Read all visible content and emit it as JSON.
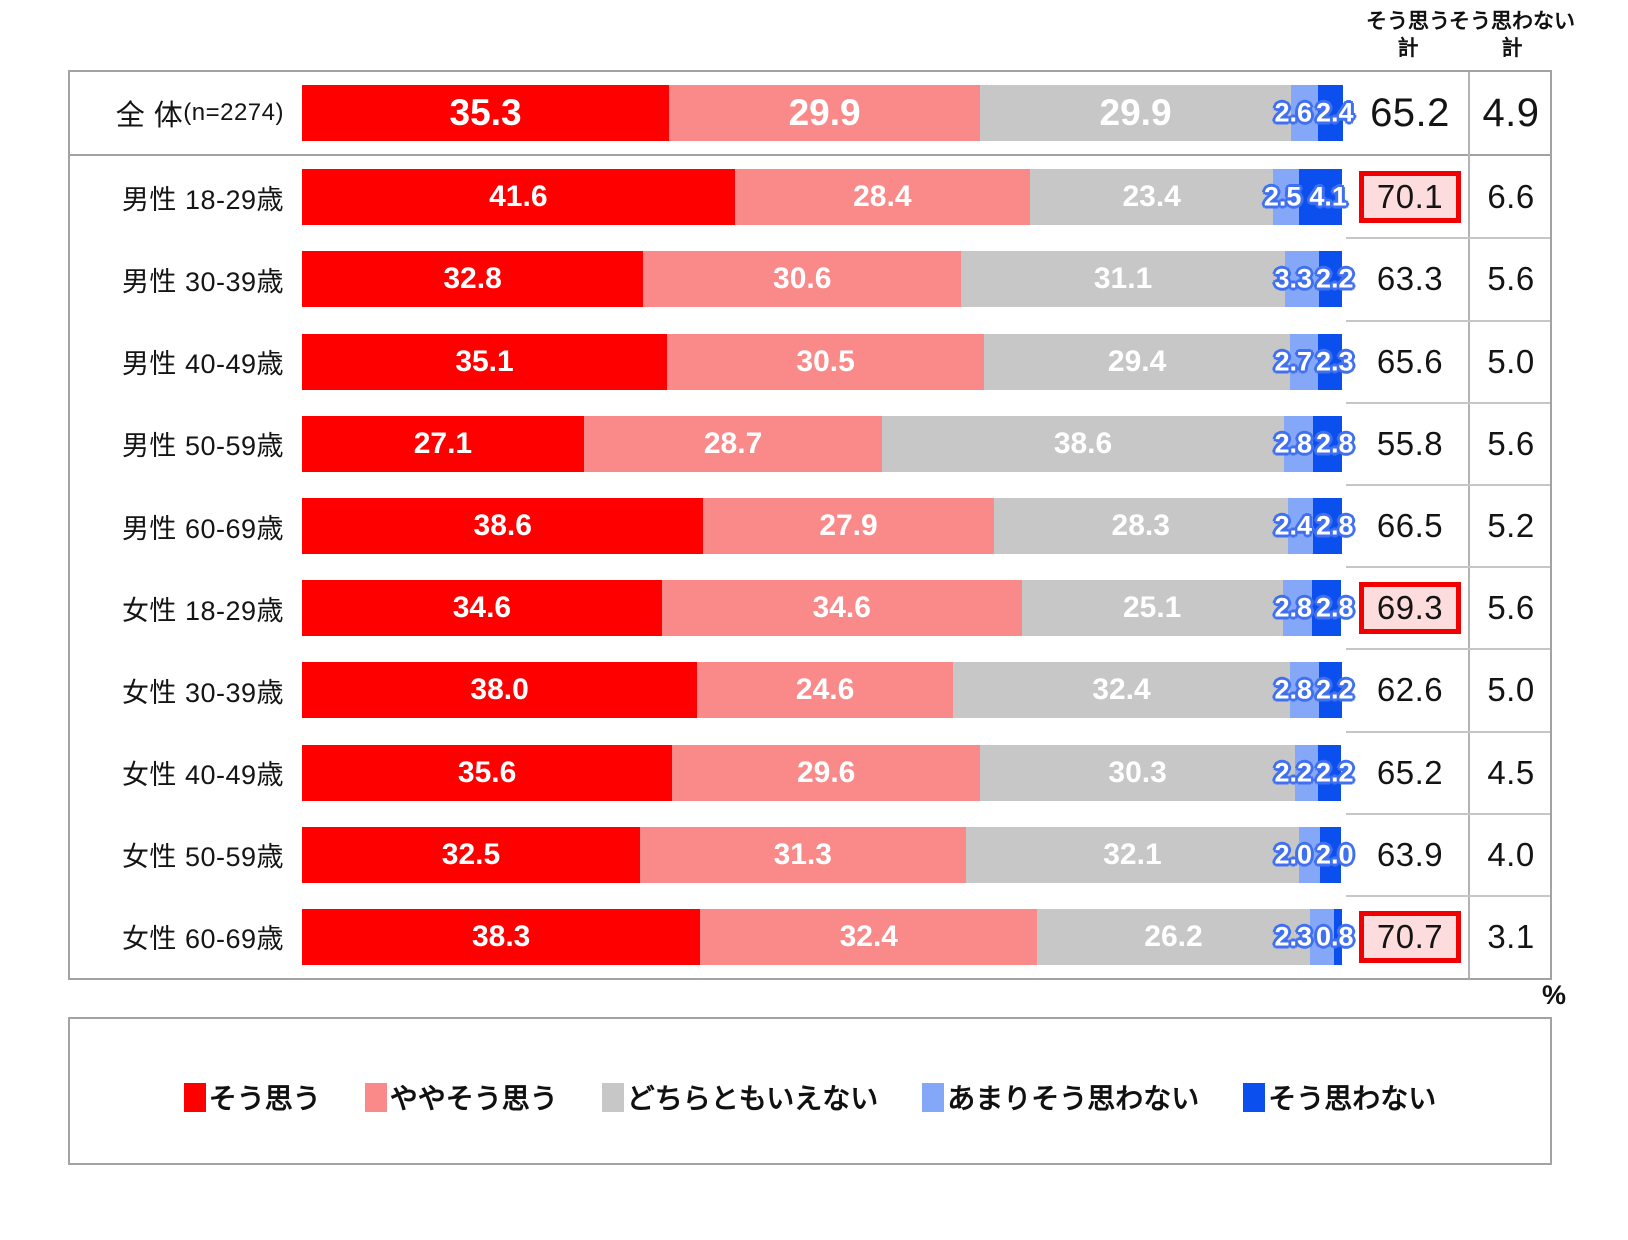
{
  "unit": "%",
  "headers": {
    "agree_line1": "そう思う",
    "disagree_line1": "そう思わない",
    "total_suffix": "計"
  },
  "colors": {
    "agree": "#ff0000",
    "somewhat_agree": "#fa8a8a",
    "neutral": "#c7c7c7",
    "somewhat_disagree": "#85a7f8",
    "disagree": "#0b4fef",
    "highlight_border": "#f00000",
    "highlight_bg": "#fcdcdc",
    "small_label_outline": "#4070f0"
  },
  "chart_data": {
    "type": "bar",
    "stacked": true,
    "orientation": "horizontal",
    "unit": "%",
    "xlim": [
      0,
      100
    ],
    "grid": false,
    "legend_position": "bottom",
    "legend": [
      {
        "label": "そう思う",
        "color": "#ff0000"
      },
      {
        "label": "ややそう思う",
        "color": "#fa8a8a"
      },
      {
        "label": "どちらともいえない",
        "color": "#c7c7c7"
      },
      {
        "label": "あまりそう思わない",
        "color": "#85a7f8"
      },
      {
        "label": "そう思わない",
        "color": "#0b4fef"
      }
    ],
    "total_columns": {
      "agree": "そう思う計",
      "disagree": "そう思わない計"
    },
    "rows": [
      {
        "label": "全 体",
        "label_note": "(n=2274)",
        "values": [
          "35.3",
          "29.9",
          "29.9",
          "2.6",
          "2.4"
        ],
        "agree_total": "65.2",
        "disagree_total": "4.9",
        "highlight": false,
        "emphasis": true
      },
      {
        "label": "男性 18-29歳",
        "values": [
          "41.6",
          "28.4",
          "23.4",
          "2.5",
          "4.1"
        ],
        "agree_total": "70.1",
        "disagree_total": "6.6",
        "highlight": true
      },
      {
        "label": "男性 30-39歳",
        "values": [
          "32.8",
          "30.6",
          "31.1",
          "3.3",
          "2.2"
        ],
        "agree_total": "63.3",
        "disagree_total": "5.6",
        "highlight": false
      },
      {
        "label": "男性 40-49歳",
        "values": [
          "35.1",
          "30.5",
          "29.4",
          "2.7",
          "2.3"
        ],
        "agree_total": "65.6",
        "disagree_total": "5.0",
        "highlight": false
      },
      {
        "label": "男性 50-59歳",
        "values": [
          "27.1",
          "28.7",
          "38.6",
          "2.8",
          "2.8"
        ],
        "agree_total": "55.8",
        "disagree_total": "5.6",
        "highlight": false
      },
      {
        "label": "男性 60-69歳",
        "values": [
          "38.6",
          "27.9",
          "28.3",
          "2.4",
          "2.8"
        ],
        "agree_total": "66.5",
        "disagree_total": "5.2",
        "highlight": false
      },
      {
        "label": "女性 18-29歳",
        "values": [
          "34.6",
          "34.6",
          "25.1",
          "2.8",
          "2.8"
        ],
        "agree_total": "69.3",
        "disagree_total": "5.6",
        "highlight": true
      },
      {
        "label": "女性 30-39歳",
        "values": [
          "38.0",
          "24.6",
          "32.4",
          "2.8",
          "2.2"
        ],
        "agree_total": "62.6",
        "disagree_total": "5.0",
        "highlight": false
      },
      {
        "label": "女性 40-49歳",
        "values": [
          "35.6",
          "29.6",
          "30.3",
          "2.2",
          "2.2"
        ],
        "agree_total": "65.2",
        "disagree_total": "4.5",
        "highlight": false
      },
      {
        "label": "女性 50-59歳",
        "values": [
          "32.5",
          "31.3",
          "32.1",
          "2.0",
          "2.0"
        ],
        "agree_total": "63.9",
        "disagree_total": "4.0",
        "highlight": false
      },
      {
        "label": "女性 60-69歳",
        "values": [
          "38.3",
          "32.4",
          "26.2",
          "2.3",
          "0.8"
        ],
        "agree_total": "70.7",
        "disagree_total": "3.1",
        "highlight": true
      }
    ],
    "segment_names": [
      "agree",
      "somewhat-agree",
      "neutral",
      "somewhat-disagree",
      "disagree"
    ]
  }
}
